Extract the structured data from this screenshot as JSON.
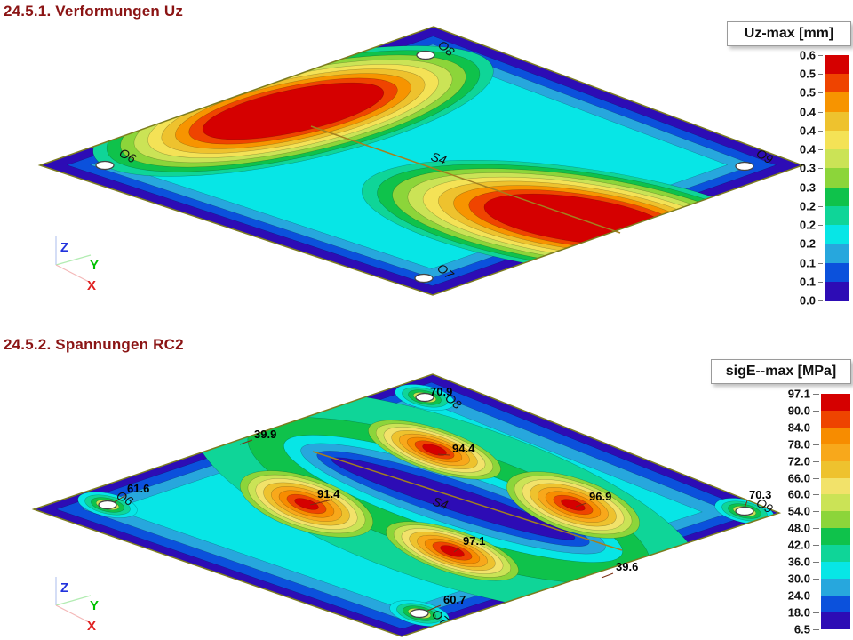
{
  "page": {
    "background": "#ffffff"
  },
  "axes_triad": {
    "x": "X",
    "y": "Y",
    "z": "Z",
    "x_color": "#e02020",
    "y_color": "#00c000",
    "z_color": "#2233dd"
  },
  "plate_border": "#7c7c1e",
  "member_color": "#a3801f",
  "leader_color": "#7a2f12",
  "plot1": {
    "title": "24.5.1. Verformungen Uz",
    "legend": {
      "title": "Uz-max [mm]",
      "labels": [
        "0.6",
        "0.5",
        "0.5",
        "0.4",
        "0.4",
        "0.4",
        "0.3",
        "0.3",
        "0.2",
        "0.2",
        "0.2",
        "0.1",
        "0.1",
        "0.0"
      ],
      "colors": [
        "#d50000",
        "#ef4400",
        "#f79400",
        "#eec22e",
        "#f4e256",
        "#cbe356",
        "#8cd53a",
        "#0fc24b",
        "#0fd598",
        "#07e6e6",
        "#27a7dd",
        "#0b51dc",
        "#2d0cb5"
      ]
    },
    "nodes": {
      "top": "O8",
      "left": "O6",
      "right": "O9",
      "bottom": "O7"
    },
    "member_label": "S4"
  },
  "plot2": {
    "title": "24.5.2. Spannungen RC2",
    "legend": {
      "title": "sigE--max [MPa]",
      "labels": [
        "97.1",
        "90.0",
        "84.0",
        "78.0",
        "72.0",
        "66.0",
        "60.0",
        "54.0",
        "48.0",
        "42.0",
        "36.0",
        "30.0",
        "24.0",
        "18.0",
        "6.5"
      ],
      "colors": [
        "#d50000",
        "#ee4400",
        "#f78c00",
        "#f8a81b",
        "#eec22e",
        "#f2e26a",
        "#cbe356",
        "#8cd53a",
        "#0fc24b",
        "#0fd598",
        "#07e6e6",
        "#27a7dd",
        "#0b51dc",
        "#2d0cb5"
      ]
    },
    "nodes": {
      "top": "O8",
      "left": "O6",
      "right": "O9",
      "bottom": "O7"
    },
    "member_label": "S4",
    "values": {
      "top_edge": "39.9",
      "mid_top": "94.4",
      "mid_left": "91.4",
      "mid_right": "96.9",
      "mid_bottom": "97.1",
      "bottom_edge": "39.6",
      "node_top": "70.9",
      "node_left": "61.6",
      "node_right": "70.3",
      "node_bottom": "60.7"
    }
  },
  "chart_data": [
    {
      "type": "heatmap",
      "variant": "fem-contour-plot",
      "title": "24.5.1. Verformungen Uz",
      "legend_title": "Uz-max [mm]",
      "unit": "mm",
      "range": [
        0.0,
        0.6
      ],
      "scale_levels": [
        0.6,
        0.5,
        0.5,
        0.4,
        0.4,
        0.4,
        0.3,
        0.3,
        0.2,
        0.2,
        0.2,
        0.1,
        0.1,
        0.0
      ],
      "scale_colors": [
        "#d50000",
        "#ef4400",
        "#f79400",
        "#eec22e",
        "#f4e256",
        "#cbe356",
        "#8cd53a",
        "#0fc24b",
        "#0fd598",
        "#07e6e6",
        "#27a7dd",
        "#0b51dc",
        "#2d0cb5"
      ],
      "nodes": [
        "O6",
        "O7",
        "O8",
        "O9"
      ],
      "members": [
        "S4"
      ],
      "features": "two elongated deformation maxima (~0.6 mm, red) in the upper-left and lower-right halves of the rhombic plate; minima (0.0, dark blue) along edges and at the four corner supports; saddle of ~0.15-0.2 mm along central member S4"
    },
    {
      "type": "heatmap",
      "variant": "fem-contour-plot",
      "title": "24.5.2. Spannungen RC2",
      "legend_title": "sigE--max [MPa]",
      "unit": "MPa",
      "range": [
        6.5,
        97.1
      ],
      "scale_levels": [
        97.1,
        90.0,
        84.0,
        78.0,
        72.0,
        66.0,
        60.0,
        54.0,
        48.0,
        42.0,
        36.0,
        30.0,
        24.0,
        18.0,
        6.5
      ],
      "scale_colors": [
        "#d50000",
        "#ee4400",
        "#f78c00",
        "#f8a81b",
        "#eec22e",
        "#f2e26a",
        "#cbe356",
        "#8cd53a",
        "#0fc24b",
        "#0fd598",
        "#07e6e6",
        "#27a7dd",
        "#0b51dc",
        "#2d0cb5"
      ],
      "nodes": [
        "O6",
        "O7",
        "O8",
        "O9"
      ],
      "members": [
        "S4"
      ],
      "labeled_values": [
        {
          "value": 39.9,
          "location": "top-left edge"
        },
        {
          "value": 94.4,
          "location": "hotspot above member S4"
        },
        {
          "value": 91.4,
          "location": "hotspot left of centre"
        },
        {
          "value": 96.9,
          "location": "hotspot right of centre"
        },
        {
          "value": 97.1,
          "location": "hotspot below member S4"
        },
        {
          "value": 39.6,
          "location": "bottom-right edge"
        },
        {
          "value": 70.9,
          "location": "support node O8"
        },
        {
          "value": 61.6,
          "location": "support node O6"
        },
        {
          "value": 70.3,
          "location": "support node O9"
        },
        {
          "value": 60.7,
          "location": "support node O7"
        }
      ],
      "features": "low stress (dark blue) along plate edges and along central member S4; broad cyan/teal mid field; four local stress maxima around the centre and small stress concentrations at the four corner supports"
    }
  ]
}
